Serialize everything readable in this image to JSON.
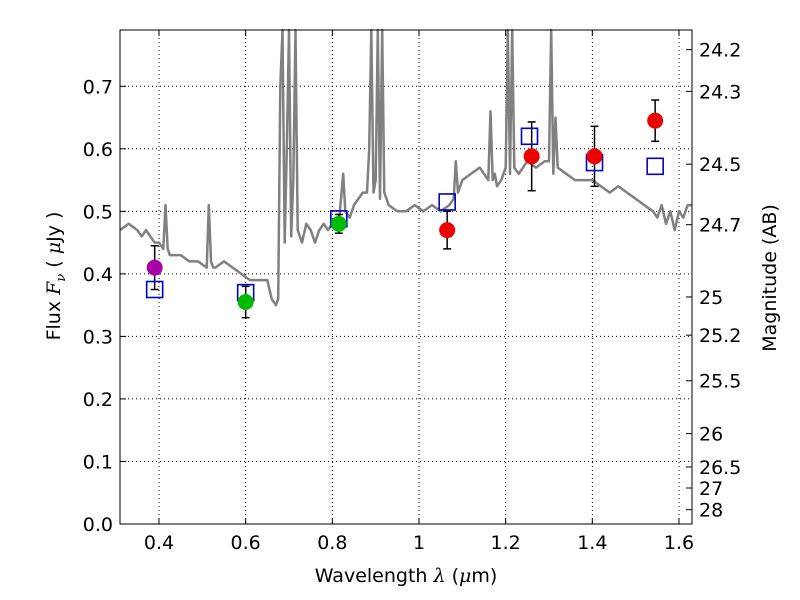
{
  "chart_data": {
    "type": "scatter",
    "title": "",
    "xlabel": "Wavelength  λ (μm)",
    "xlabel_parts": [
      "Wavelength  ",
      "λ",
      " (",
      "μ",
      "m)"
    ],
    "ylabel": "Flux  Fν  ( μJy )",
    "ylabel_parts": [
      "Flux  ",
      "F",
      "ν",
      "  ( ",
      "μ",
      "Jy )"
    ],
    "y2label": "Magnitude (AB)",
    "xlim": [
      0.31,
      1.63
    ],
    "ylim": [
      0.0,
      0.79
    ],
    "grid": true,
    "x_ticks": [
      0.4,
      0.6,
      0.8,
      1.0,
      1.2,
      1.4,
      1.6
    ],
    "x_tick_labels": [
      "0.4",
      "0.6",
      "0.8",
      "1",
      "1.2",
      "1.4",
      "1.6"
    ],
    "y_ticks": [
      0.0,
      0.1,
      0.2,
      0.3,
      0.4,
      0.5,
      0.6,
      0.7
    ],
    "y_tick_labels": [
      "0.0",
      "0.1",
      "0.2",
      "0.3",
      "0.4",
      "0.5",
      "0.6",
      "0.7"
    ],
    "y2_ticks": [
      24.2,
      24.3,
      24.5,
      24.7,
      25.0,
      25.2,
      25.5,
      26.0,
      26.5,
      27.0,
      28.0
    ],
    "y2_tick_labels": [
      "24.2",
      "24.3",
      "24.5",
      "24.7",
      "25",
      "25.2",
      "25.5",
      "26",
      "26.5",
      "27",
      "28"
    ],
    "colors": {
      "spectrum": "#808080",
      "model_marker": "#0000cc",
      "magenta": "#aa00aa",
      "green": "#00bb00",
      "red": "#ee0000",
      "errorbar": "#000000",
      "grid": "#000000"
    },
    "series": [
      {
        "kind": "spectrum",
        "x": [
          0.31,
          0.33,
          0.35,
          0.36,
          0.37,
          0.38,
          0.39,
          0.4,
          0.41,
          0.415,
          0.42,
          0.425,
          0.43,
          0.45,
          0.47,
          0.49,
          0.51,
          0.515,
          0.52,
          0.525,
          0.53,
          0.55,
          0.57,
          0.59,
          0.61,
          0.63,
          0.65,
          0.66,
          0.67,
          0.675,
          0.68,
          0.685,
          0.69,
          0.695,
          0.7,
          0.705,
          0.71,
          0.715,
          0.72,
          0.73,
          0.74,
          0.75,
          0.76,
          0.77,
          0.78,
          0.79,
          0.8,
          0.81,
          0.815,
          0.82,
          0.825,
          0.83,
          0.84,
          0.85,
          0.86,
          0.87,
          0.88,
          0.885,
          0.89,
          0.895,
          0.9,
          0.905,
          0.91,
          0.915,
          0.92,
          0.925,
          0.93,
          0.95,
          0.97,
          0.99,
          1.01,
          1.03,
          1.05,
          1.07,
          1.08,
          1.085,
          1.09,
          1.1,
          1.12,
          1.14,
          1.16,
          1.165,
          1.17,
          1.175,
          1.18,
          1.19,
          1.2,
          1.205,
          1.21,
          1.215,
          1.22,
          1.23,
          1.24,
          1.25,
          1.27,
          1.29,
          1.3,
          1.305,
          1.31,
          1.315,
          1.32,
          1.34,
          1.36,
          1.38,
          1.4,
          1.42,
          1.44,
          1.46,
          1.48,
          1.5,
          1.52,
          1.54,
          1.55,
          1.56,
          1.57,
          1.58,
          1.59,
          1.6,
          1.61,
          1.62,
          1.63
        ],
        "y": [
          0.47,
          0.48,
          0.47,
          0.46,
          0.47,
          0.46,
          0.45,
          0.45,
          0.44,
          0.51,
          0.44,
          0.43,
          0.43,
          0.43,
          0.42,
          0.42,
          0.41,
          0.51,
          0.42,
          0.41,
          0.41,
          0.42,
          0.41,
          0.4,
          0.39,
          0.39,
          0.39,
          0.36,
          0.35,
          0.36,
          0.7,
          0.79,
          0.45,
          0.6,
          0.79,
          0.46,
          0.55,
          0.79,
          0.47,
          0.45,
          0.48,
          0.47,
          0.45,
          0.47,
          0.48,
          0.47,
          0.48,
          0.47,
          0.48,
          0.52,
          0.56,
          0.5,
          0.49,
          0.51,
          0.52,
          0.53,
          0.53,
          0.6,
          0.79,
          0.53,
          0.55,
          0.79,
          0.52,
          0.79,
          0.53,
          0.52,
          0.51,
          0.5,
          0.5,
          0.51,
          0.5,
          0.51,
          0.5,
          0.51,
          0.52,
          0.58,
          0.53,
          0.55,
          0.56,
          0.57,
          0.55,
          0.66,
          0.55,
          0.56,
          0.54,
          0.55,
          0.57,
          0.79,
          0.56,
          0.79,
          0.57,
          0.56,
          0.57,
          0.58,
          0.57,
          0.58,
          0.58,
          0.79,
          0.56,
          0.65,
          0.57,
          0.56,
          0.55,
          0.55,
          0.55,
          0.54,
          0.53,
          0.54,
          0.53,
          0.52,
          0.51,
          0.5,
          0.49,
          0.51,
          0.48,
          0.5,
          0.47,
          0.5,
          0.49,
          0.51,
          0.51
        ]
      },
      {
        "kind": "model",
        "marker": "open-square",
        "x": [
          0.39,
          0.6,
          0.815,
          1.065,
          1.255,
          1.405,
          1.545
        ],
        "y": [
          0.375,
          0.37,
          0.488,
          0.515,
          0.62,
          0.578,
          0.572
        ]
      },
      {
        "kind": "obs",
        "color": "magenta",
        "x": [
          0.39
        ],
        "y": [
          0.41
        ],
        "yerr": [
          0.035
        ]
      },
      {
        "kind": "obs",
        "color": "green",
        "x": [
          0.6,
          0.815
        ],
        "y": [
          0.355,
          0.48
        ],
        "yerr": [
          0.025,
          0.015
        ]
      },
      {
        "kind": "obs",
        "color": "red",
        "x": [
          1.065,
          1.26,
          1.405,
          1.545
        ],
        "y": [
          0.47,
          0.588,
          0.588,
          0.645
        ],
        "yerr": [
          0.03,
          0.055,
          0.048,
          0.033
        ]
      }
    ]
  }
}
